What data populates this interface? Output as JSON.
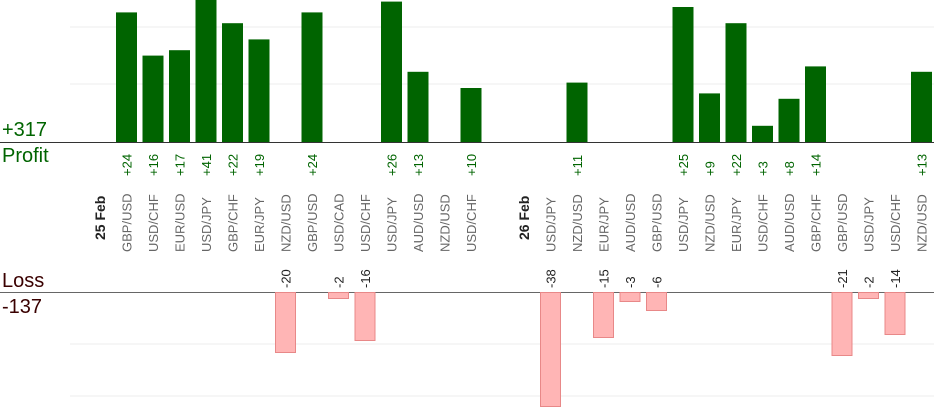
{
  "chart_data": {
    "type": "bar",
    "profit": {
      "total_label": "+317",
      "label": "Profit",
      "color": "#006400",
      "label_color": "#006400"
    },
    "loss": {
      "label": "Loss",
      "total_label": "-137",
      "color": "#ffb5b5",
      "stroke": "#e88888",
      "label_color": "#3a0000"
    },
    "slots": [
      {
        "kind": "date",
        "label": "25 Feb"
      },
      {
        "kind": "trade",
        "pair": "GBP/USD",
        "value": 24,
        "label": "+24"
      },
      {
        "kind": "trade",
        "pair": "USD/CHF",
        "value": 16,
        "label": "+16"
      },
      {
        "kind": "trade",
        "pair": "EUR/USD",
        "value": 17,
        "label": "+17"
      },
      {
        "kind": "trade",
        "pair": "USD/JPY",
        "value": 41,
        "label": "+41"
      },
      {
        "kind": "trade",
        "pair": "GBP/CHF",
        "value": 22,
        "label": "+22"
      },
      {
        "kind": "trade",
        "pair": "EUR/JPY",
        "value": 19,
        "label": "+19"
      },
      {
        "kind": "trade",
        "pair": "NZD/USD",
        "value": -20,
        "label": "-20"
      },
      {
        "kind": "trade",
        "pair": "GBP/USD",
        "value": 24,
        "label": "+24"
      },
      {
        "kind": "trade",
        "pair": "USD/CAD",
        "value": -2,
        "label": "-2"
      },
      {
        "kind": "trade",
        "pair": "USD/CHF",
        "value": -16,
        "label": "-16"
      },
      {
        "kind": "trade",
        "pair": "USD/JPY",
        "value": 26,
        "label": "+26"
      },
      {
        "kind": "trade",
        "pair": "AUD/USD",
        "value": 13,
        "label": "+13"
      },
      {
        "kind": "trade",
        "pair": "NZD/USD",
        "value": null,
        "label": ""
      },
      {
        "kind": "trade",
        "pair": "USD/CHF",
        "value": 10,
        "label": "+10"
      },
      {
        "kind": "gap"
      },
      {
        "kind": "date",
        "label": "26 Feb"
      },
      {
        "kind": "trade",
        "pair": "USD/JPY",
        "value": -38,
        "label": "-38"
      },
      {
        "kind": "trade",
        "pair": "NZD/USD",
        "value": 11,
        "label": "+11"
      },
      {
        "kind": "trade",
        "pair": "EUR/JPY",
        "value": -15,
        "label": "-15"
      },
      {
        "kind": "trade",
        "pair": "AUD/USD",
        "value": -3,
        "label": "-3"
      },
      {
        "kind": "trade",
        "pair": "GBP/USD",
        "value": -6,
        "label": "-6"
      },
      {
        "kind": "trade",
        "pair": "USD/JPY",
        "value": 25,
        "label": "+25"
      },
      {
        "kind": "trade",
        "pair": "NZD/USD",
        "value": 9,
        "label": "+9"
      },
      {
        "kind": "trade",
        "pair": "EUR/JPY",
        "value": 22,
        "label": "+22"
      },
      {
        "kind": "trade",
        "pair": "USD/CHF",
        "value": 3,
        "label": "+3"
      },
      {
        "kind": "trade",
        "pair": "AUD/USD",
        "value": 8,
        "label": "+8"
      },
      {
        "kind": "trade",
        "pair": "GBP/CHF",
        "value": 14,
        "label": "+14"
      },
      {
        "kind": "trade",
        "pair": "GBP/USD",
        "value": -21,
        "label": "-21"
      },
      {
        "kind": "trade",
        "pair": "USD/JPY",
        "value": -2,
        "label": "-2"
      },
      {
        "kind": "trade",
        "pair": "USD/CHF",
        "value": -14,
        "label": "-14"
      },
      {
        "kind": "trade",
        "pair": "NZD/USD",
        "value": 13,
        "label": "+13"
      }
    ],
    "profit_ylim": [
      0,
      27
    ],
    "loss_ylim": [
      0,
      36
    ],
    "grid": true
  }
}
